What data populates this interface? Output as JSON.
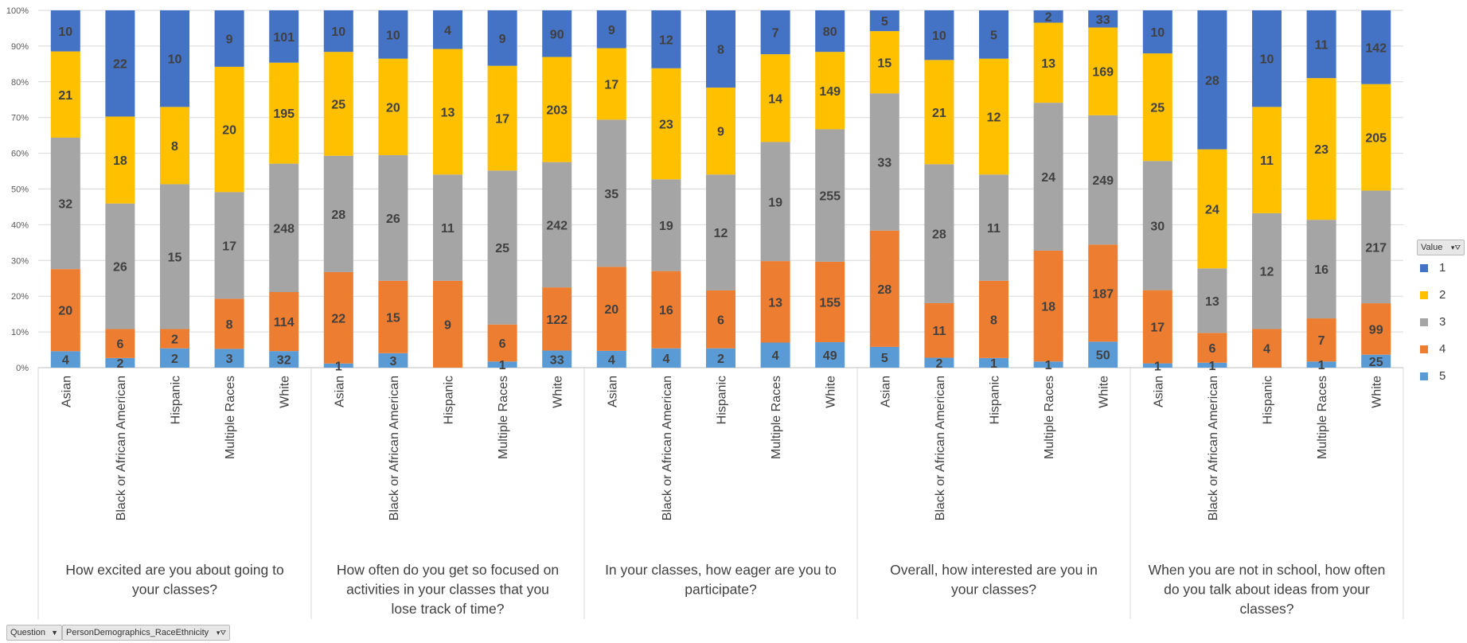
{
  "chart_data": {
    "type": "bar",
    "stacked": "percent",
    "yticks": [
      "0%",
      "10%",
      "20%",
      "30%",
      "40%",
      "50%",
      "60%",
      "70%",
      "80%",
      "90%",
      "100%"
    ],
    "ylim": [
      0,
      100
    ],
    "grid": true,
    "legend_position": "right",
    "legend_title": "Value",
    "series_order_bottom_to_top": [
      "5",
      "4",
      "3",
      "2",
      "1"
    ],
    "series_colors": {
      "1": "#4472c4",
      "2": "#ffc000",
      "3": "#a5a5a5",
      "4": "#ed7d31",
      "5": "#5b9bd5"
    },
    "legend_entries": [
      "1",
      "2",
      "3",
      "4",
      "5"
    ],
    "groups": [
      {
        "question": "How excited are you about going to your classes?",
        "categories": [
          "Asian",
          "Black or African American",
          "Hispanic",
          "Multiple Races",
          "White"
        ],
        "series": [
          {
            "name": "5",
            "values": [
              4,
              2,
              2,
              3,
              32
            ]
          },
          {
            "name": "4",
            "values": [
              20,
              6,
              2,
              8,
              114
            ]
          },
          {
            "name": "3",
            "values": [
              32,
              26,
              15,
              17,
              248
            ]
          },
          {
            "name": "2",
            "values": [
              21,
              18,
              8,
              20,
              195
            ]
          },
          {
            "name": "1",
            "values": [
              10,
              22,
              10,
              9,
              101
            ]
          }
        ]
      },
      {
        "question": "How often do you get so focused on activities in your classes that you lose track of time?",
        "categories": [
          "Asian",
          "Black or African American",
          "Hispanic",
          "Multiple Races",
          "White"
        ],
        "series": [
          {
            "name": "5",
            "values": [
              1,
              3,
              0,
              1,
              33
            ]
          },
          {
            "name": "4",
            "values": [
              22,
              15,
              9,
              6,
              122
            ]
          },
          {
            "name": "3",
            "values": [
              28,
              26,
              11,
              25,
              242
            ]
          },
          {
            "name": "2",
            "values": [
              25,
              20,
              13,
              17,
              203
            ]
          },
          {
            "name": "1",
            "values": [
              10,
              10,
              4,
              9,
              90
            ]
          }
        ]
      },
      {
        "question": "In your classes, how eager are you to participate?",
        "categories": [
          "Asian",
          "Black or African American",
          "Hispanic",
          "Multiple Races",
          "White"
        ],
        "series": [
          {
            "name": "5",
            "values": [
              4,
              4,
              2,
              4,
              49
            ]
          },
          {
            "name": "4",
            "values": [
              20,
              16,
              6,
              13,
              155
            ]
          },
          {
            "name": "3",
            "values": [
              35,
              19,
              12,
              19,
              255
            ]
          },
          {
            "name": "2",
            "values": [
              17,
              23,
              9,
              14,
              149
            ]
          },
          {
            "name": "1",
            "values": [
              9,
              12,
              8,
              7,
              80
            ]
          }
        ]
      },
      {
        "question": "Overall, how interested are you in your classes?",
        "categories": [
          "Asian",
          "Black or African American",
          "Hispanic",
          "Multiple Races",
          "White"
        ],
        "series": [
          {
            "name": "5",
            "values": [
              5,
              2,
              1,
              1,
              50
            ]
          },
          {
            "name": "4",
            "values": [
              28,
              11,
              8,
              18,
              187
            ]
          },
          {
            "name": "3",
            "values": [
              33,
              28,
              11,
              24,
              249
            ]
          },
          {
            "name": "2",
            "values": [
              15,
              21,
              12,
              13,
              169
            ]
          },
          {
            "name": "1",
            "values": [
              5,
              10,
              5,
              2,
              33
            ]
          }
        ]
      },
      {
        "question": "When you are not in school, how often do you talk about ideas from your classes?",
        "categories": [
          "Asian",
          "Black or African American",
          "Hispanic",
          "Multiple Races",
          "White"
        ],
        "series": [
          {
            "name": "5",
            "values": [
              1,
              1,
              0,
              1,
              25
            ]
          },
          {
            "name": "4",
            "values": [
              17,
              6,
              4,
              7,
              99
            ]
          },
          {
            "name": "3",
            "values": [
              30,
              13,
              12,
              16,
              217
            ]
          },
          {
            "name": "2",
            "values": [
              25,
              24,
              11,
              23,
              205
            ]
          },
          {
            "name": "1",
            "values": [
              10,
              28,
              10,
              11,
              142
            ]
          }
        ]
      }
    ]
  },
  "filters": {
    "question_label": "Question",
    "demographics_label": "PersonDemographics_RaceEthnicity"
  }
}
